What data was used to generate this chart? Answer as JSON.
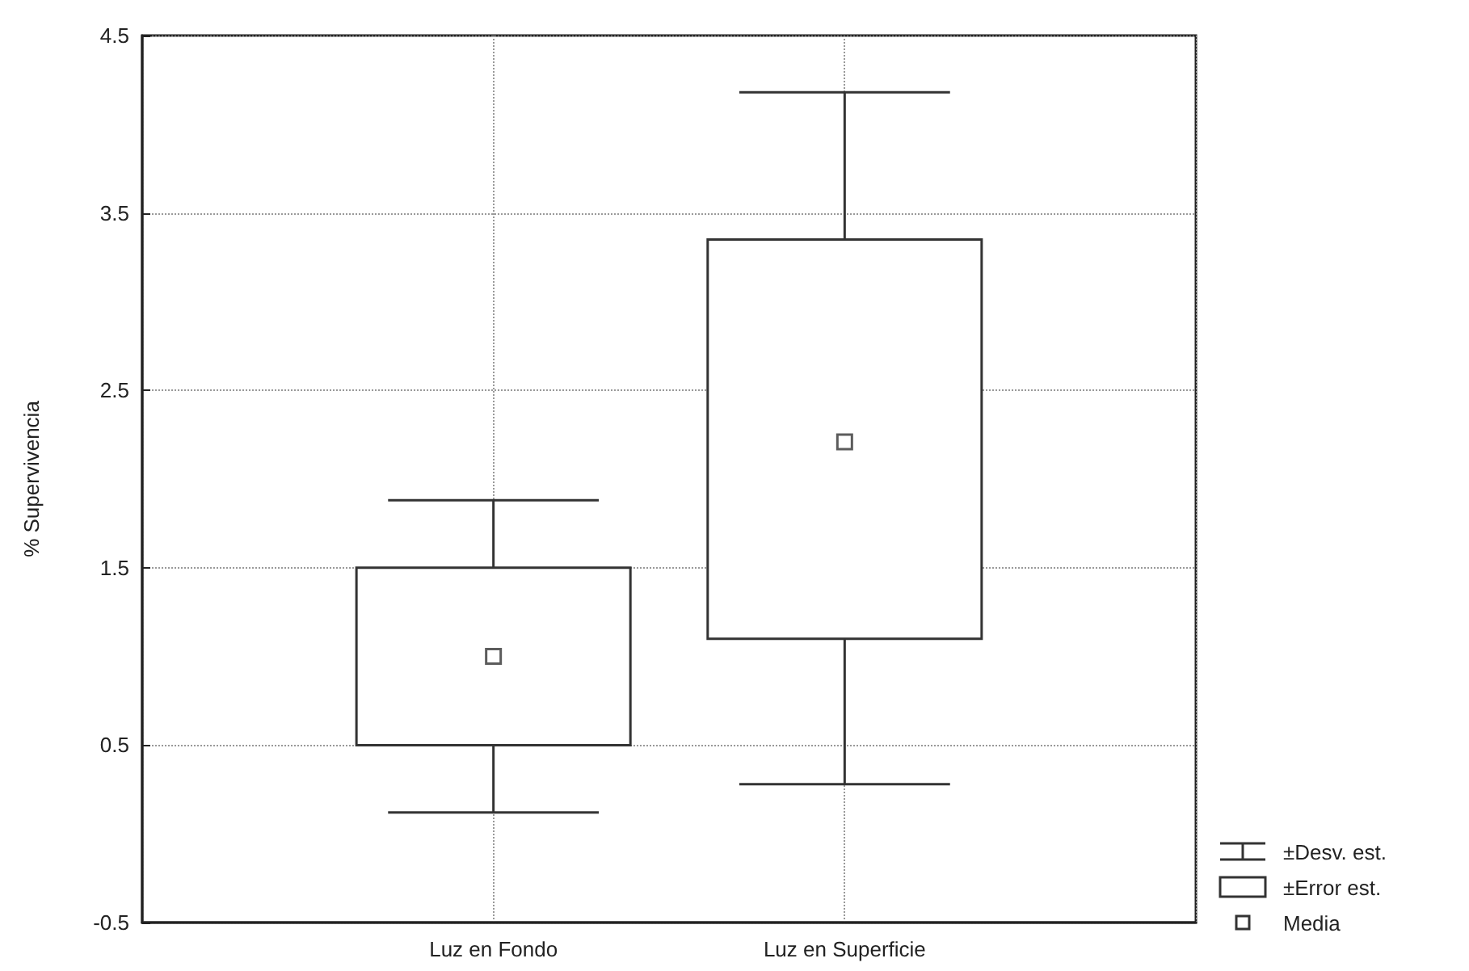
{
  "chart_data": {
    "type": "box",
    "ylabel": "% Supervivencia",
    "categories": [
      "Luz en Fondo",
      "Luz en Superficie"
    ],
    "boxes": [
      {
        "low": 0.12,
        "q1": 0.5,
        "q3": 1.5,
        "high": 1.88,
        "mean": 1.0
      },
      {
        "low": 0.28,
        "q1": 1.1,
        "q3": 3.35,
        "high": 4.18,
        "mean": 2.21
      }
    ],
    "ylim": [
      -0.5,
      4.5
    ],
    "yticks": [
      -0.5,
      0.5,
      1.5,
      2.5,
      3.5,
      4.5
    ],
    "grid": true,
    "marker": "square",
    "annotations": [
      "±Desv. est.",
      "±Error est.",
      "Media"
    ]
  }
}
